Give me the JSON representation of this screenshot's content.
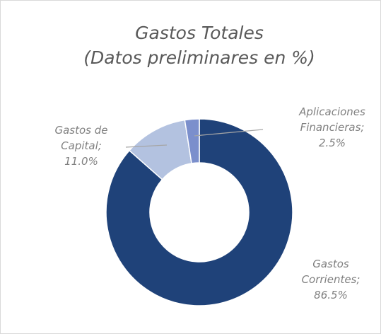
{
  "chart_data": {
    "type": "donut",
    "title": [
      "Gastos Totales",
      "(Datos preliminares en %)"
    ],
    "categories": [
      "Gastos Corrientes;",
      "Gastos de Capital;",
      "Aplicaciones Financieras;"
    ],
    "values": [
      86.5,
      11.0,
      2.5
    ],
    "value_labels": [
      "86.5%",
      "11.0%",
      "2.5%"
    ],
    "colors": [
      "#1f4279",
      "#b3c2e0",
      "#7b8fcc"
    ]
  }
}
